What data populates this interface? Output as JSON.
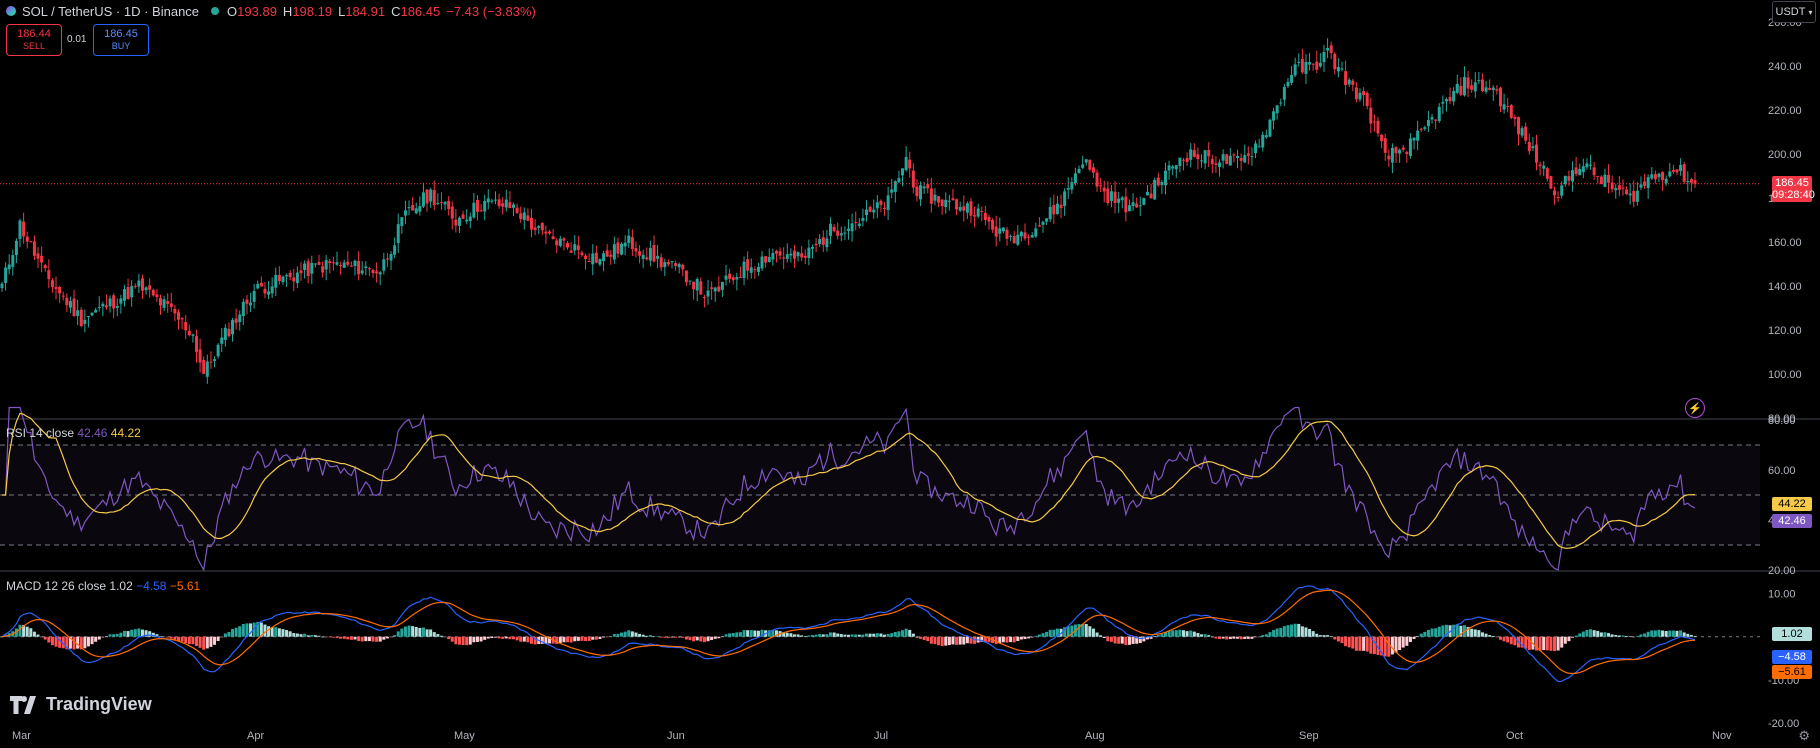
{
  "header": {
    "symbol_title": "SOL / TetherUS · 1D · Binance",
    "open_label": "O",
    "open": "193.89",
    "high_label": "H",
    "high": "198.19",
    "low_label": "L",
    "low": "184.91",
    "close_label": "C",
    "close": "186.45",
    "change": "−7.43 (−3.83%)"
  },
  "trade": {
    "sell_price": "186.44",
    "sell_label": "SELL",
    "spread": "0.01",
    "buy_price": "186.45",
    "buy_label": "BUY"
  },
  "currency_button": "USDT",
  "price_tag": {
    "price": "186.45",
    "countdown": "09:28:40"
  },
  "rsi": {
    "label": "RSI 14 close",
    "value": "42.46",
    "ma_value": "44.22"
  },
  "macd": {
    "label": "MACD 12 26 close",
    "hist_value": "1.02",
    "macd_value": "−4.58",
    "signal_value": "−5.61"
  },
  "brand": "TradingView",
  "colors": {
    "up": "#26a69a",
    "down": "#f23645",
    "rsi": "#7e57c2",
    "rsi_ma": "#f7c948",
    "macd": "#2962ff",
    "signal": "#ff6d00"
  },
  "chart_data": {
    "type": "candlestick",
    "x_tick_labels": [
      "Mar",
      "Apr",
      "May",
      "Jun",
      "Jul",
      "Aug",
      "Sep",
      "Oct",
      "Nov"
    ],
    "price_axis": {
      "ticks": [
        "80.00",
        "100.00",
        "120.00",
        "140.00",
        "160.00",
        "180.00",
        "200.00",
        "220.00",
        "240.00",
        "260.00"
      ],
      "range": [
        80,
        260
      ]
    },
    "rsi_axis": {
      "ticks": [
        "20.00",
        "40.00",
        "60.00",
        "80.00"
      ],
      "range": [
        20,
        80
      ],
      "bands": [
        30,
        50,
        70
      ]
    },
    "macd_axis": {
      "ticks": [
        "-20.00",
        "-10.00",
        "10.00"
      ],
      "range": [
        -20,
        15
      ]
    },
    "price_anchors": [
      [
        0,
        140
      ],
      [
        5,
        168
      ],
      [
        12,
        145
      ],
      [
        22,
        125
      ],
      [
        30,
        132
      ],
      [
        38,
        140
      ],
      [
        46,
        130
      ],
      [
        53,
        118
      ],
      [
        56,
        100
      ],
      [
        62,
        118
      ],
      [
        70,
        138
      ],
      [
        78,
        143
      ],
      [
        86,
        148
      ],
      [
        92,
        150
      ],
      [
        100,
        148
      ],
      [
        105,
        147
      ],
      [
        112,
        172
      ],
      [
        119,
        182
      ],
      [
        126,
        170
      ],
      [
        134,
        178
      ],
      [
        142,
        176
      ],
      [
        150,
        163
      ],
      [
        158,
        158
      ],
      [
        166,
        152
      ],
      [
        174,
        160
      ],
      [
        182,
        152
      ],
      [
        190,
        145
      ],
      [
        196,
        135
      ],
      [
        206,
        148
      ],
      [
        214,
        155
      ],
      [
        222,
        152
      ],
      [
        230,
        165
      ],
      [
        238,
        170
      ],
      [
        246,
        178
      ],
      [
        251,
        198
      ],
      [
        254,
        183
      ],
      [
        262,
        178
      ],
      [
        270,
        175
      ],
      [
        276,
        165
      ],
      [
        280,
        162
      ],
      [
        288,
        168
      ],
      [
        294,
        178
      ],
      [
        300,
        198
      ],
      [
        306,
        182
      ],
      [
        314,
        175
      ],
      [
        320,
        185
      ],
      [
        328,
        200
      ],
      [
        336,
        198
      ],
      [
        344,
        196
      ],
      [
        350,
        208
      ],
      [
        354,
        222
      ],
      [
        358,
        238
      ],
      [
        364,
        240
      ],
      [
        368,
        246
      ],
      [
        374,
        232
      ],
      [
        379,
        222
      ],
      [
        384,
        198
      ],
      [
        392,
        205
      ],
      [
        398,
        218
      ],
      [
        406,
        232
      ],
      [
        414,
        230
      ],
      [
        420,
        214
      ],
      [
        426,
        198
      ],
      [
        432,
        182
      ],
      [
        438,
        196
      ],
      [
        446,
        186
      ],
      [
        452,
        180
      ],
      [
        458,
        190
      ],
      [
        465,
        193
      ],
      [
        470,
        186
      ]
    ],
    "last_close": 186.45
  }
}
